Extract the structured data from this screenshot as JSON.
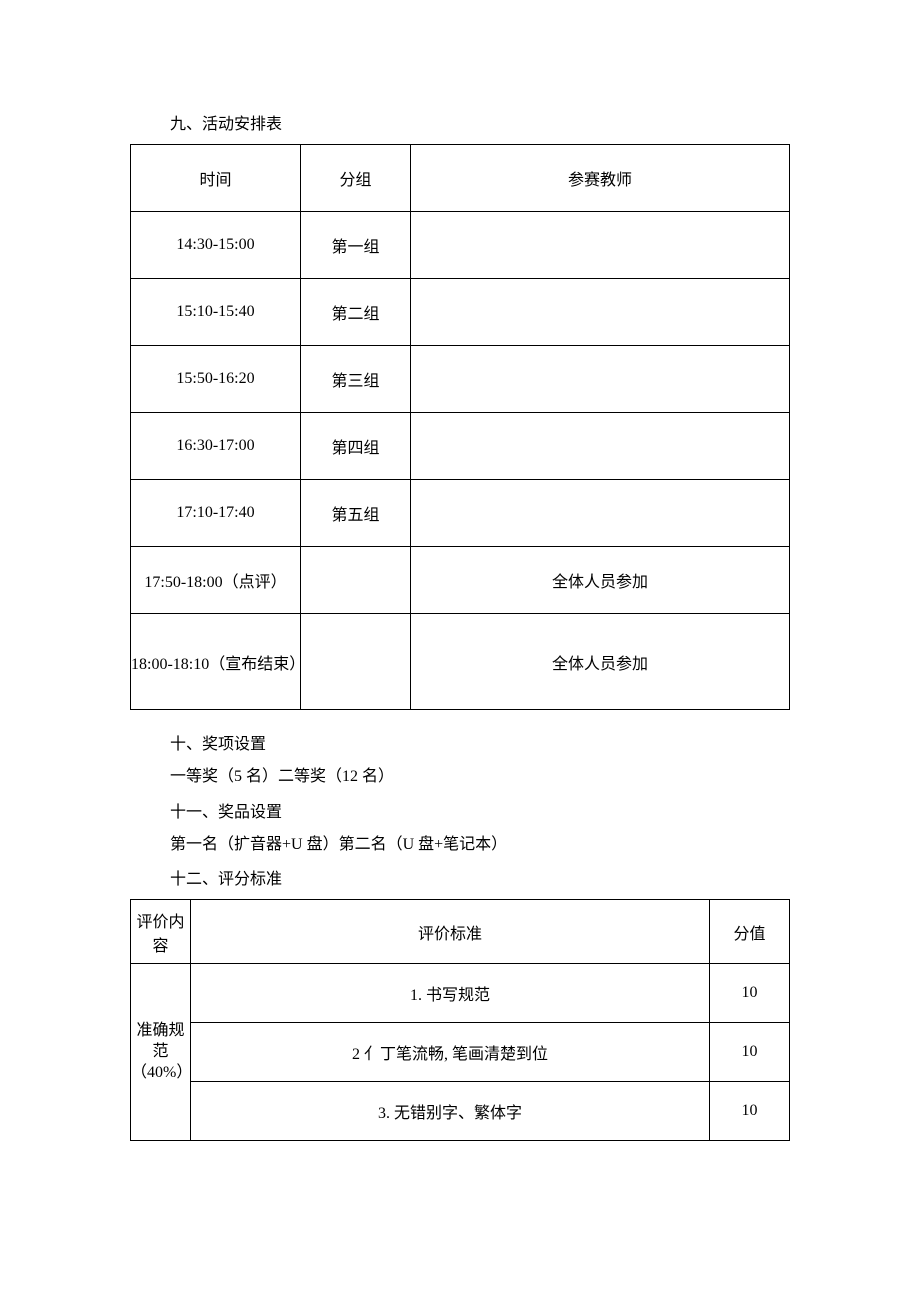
{
  "section9": {
    "title": "九、活动安排表",
    "table": {
      "headers": [
        "时间",
        "分组",
        "参赛教师"
      ],
      "rows": [
        {
          "time": "14:30-15:00",
          "group": "第一组",
          "teacher": ""
        },
        {
          "time": "15:10-15:40",
          "group": "第二组",
          "teacher": ""
        },
        {
          "time": "15:50-16:20",
          "group": "第三组",
          "teacher": ""
        },
        {
          "time": "16:30-17:00",
          "group": "第四组",
          "teacher": ""
        },
        {
          "time": "17:10-17:40",
          "group": "第五组",
          "teacher": ""
        },
        {
          "time": "17:50-18:00（点评）",
          "group": "",
          "teacher": "全体人员参加"
        },
        {
          "time": "18:00-18:10（宣布结束）",
          "group": "",
          "teacher": "全体人员参加"
        }
      ]
    }
  },
  "section10": {
    "title": "十、奖项设置",
    "text": "一等奖（5 名）二等奖（12 名）"
  },
  "section11": {
    "title": "十一、奖品设置",
    "text": "第一名（扩音器+U 盘）第二名（U 盘+笔记本）"
  },
  "section12": {
    "title": "十二、评分标准",
    "table": {
      "headers": [
        "评价内容",
        "评价标准",
        "分值"
      ],
      "category": "准确规范（40%）",
      "rows": [
        {
          "criterion": "1. 书写规范",
          "score": "10"
        },
        {
          "criterion": "2 亻丁笔流畅, 笔画清楚到位",
          "score": "10"
        },
        {
          "criterion": "3. 无错别字、繁体字",
          "score": "10"
        }
      ]
    }
  },
  "colors": {
    "text": "#000000",
    "background": "#ffffff",
    "border": "#000000"
  },
  "typography": {
    "font_family": "SimSun",
    "body_fontsize_pt": 12
  }
}
